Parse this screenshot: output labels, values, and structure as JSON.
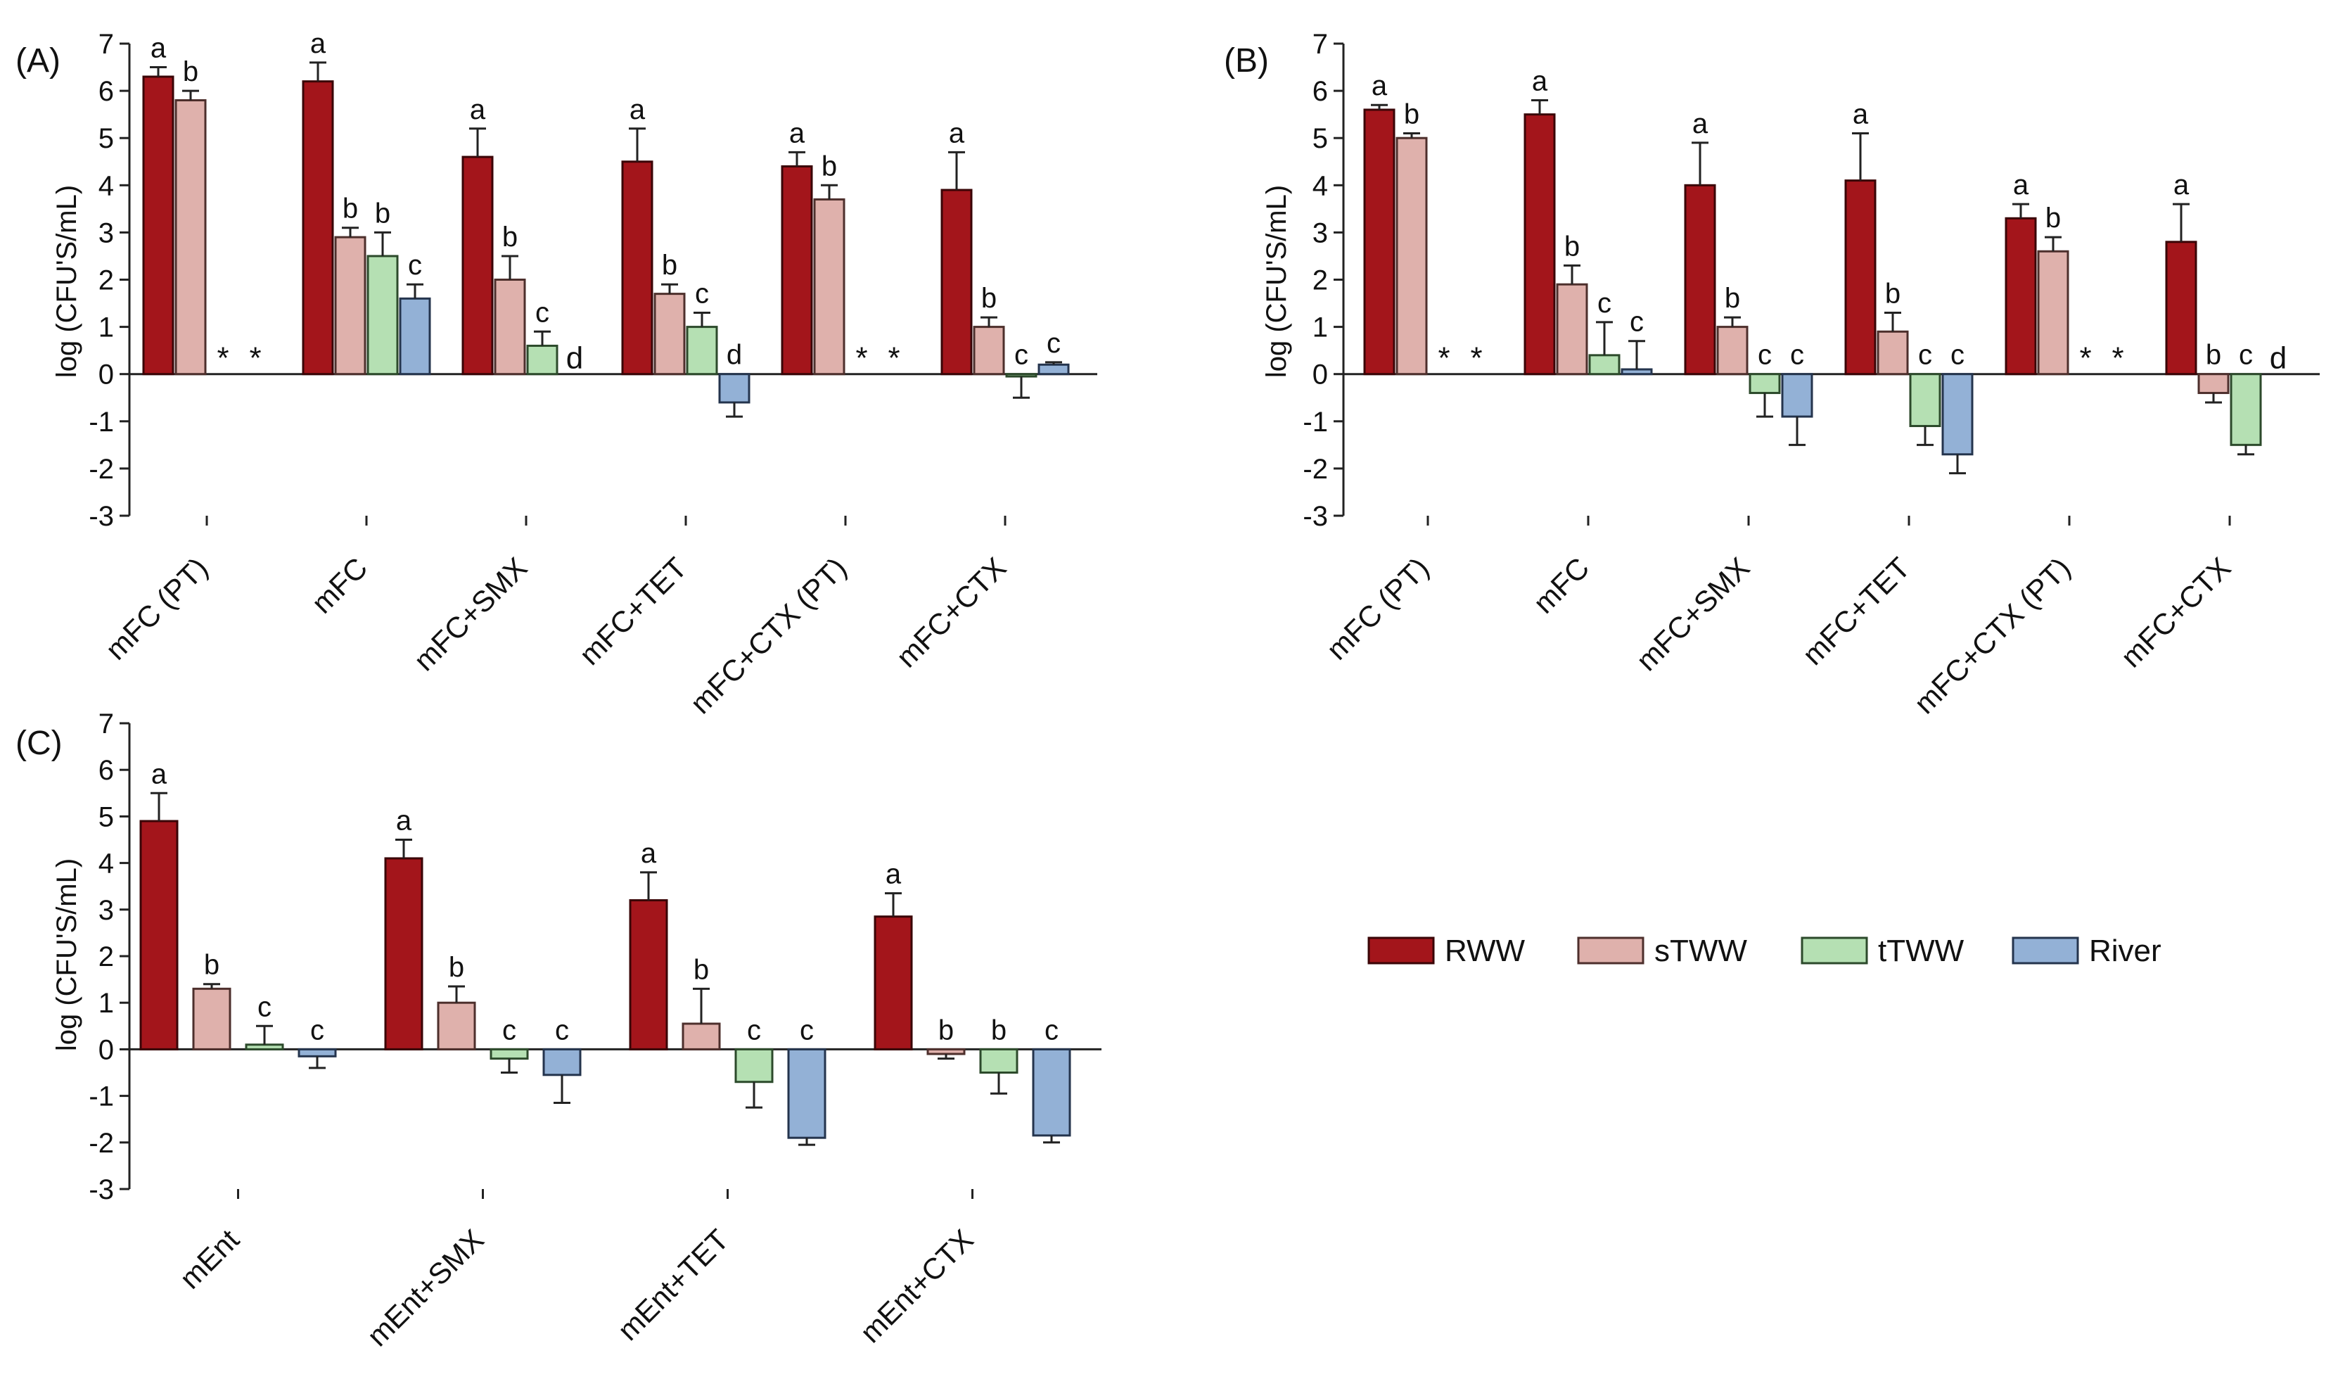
{
  "legend": {
    "items": [
      {
        "name": "RWW",
        "color": "#a3151b"
      },
      {
        "name": "sTWW",
        "color": "#dfb1ac"
      },
      {
        "name": "tTWW",
        "color": "#b5e0b3"
      },
      {
        "name": "River",
        "color": "#93b1d6"
      }
    ]
  },
  "series_style": {
    "RWW": {
      "fill": "#a3151b",
      "stroke": "#3a0507"
    },
    "sTWW": {
      "fill": "#dfb1ac",
      "stroke": "#4d2f2c"
    },
    "tTWW": {
      "fill": "#b5e0b3",
      "stroke": "#2c4a2b"
    },
    "River": {
      "fill": "#93b1d6",
      "stroke": "#24344d"
    }
  },
  "chart_data": [
    {
      "panel": "(A)",
      "type": "bar",
      "ylabel": "log (CFU'S/mL)",
      "ylim": [
        -3,
        7
      ],
      "yticks": [
        7,
        6,
        5,
        4,
        3,
        2,
        1,
        0,
        -1,
        -2,
        -3
      ],
      "series_names": [
        "RWW",
        "sTWW",
        "tTWW",
        "River"
      ],
      "groups": [
        {
          "label": "mFC (PT)",
          "bars": [
            {
              "series": "RWW",
              "value": 6.3,
              "err": 0.2,
              "letter": "a"
            },
            {
              "series": "sTWW",
              "value": 5.8,
              "err": 0.2,
              "letter": "b"
            },
            {
              "series": "tTWW",
              "value": null,
              "err": null,
              "letter": "*"
            },
            {
              "series": "River",
              "value": null,
              "err": null,
              "letter": "*"
            }
          ]
        },
        {
          "label": "mFC",
          "bars": [
            {
              "series": "RWW",
              "value": 6.2,
              "err": 0.4,
              "letter": "a"
            },
            {
              "series": "sTWW",
              "value": 2.9,
              "err": 0.2,
              "letter": "b"
            },
            {
              "series": "tTWW",
              "value": 2.5,
              "err": 0.5,
              "letter": "b"
            },
            {
              "series": "River",
              "value": 1.6,
              "err": 0.3,
              "letter": "c"
            }
          ]
        },
        {
          "label": "mFC+SMX",
          "bars": [
            {
              "series": "RWW",
              "value": 4.6,
              "err": 0.6,
              "letter": "a"
            },
            {
              "series": "sTWW",
              "value": 2.0,
              "err": 0.5,
              "letter": "b"
            },
            {
              "series": "tTWW",
              "value": 0.6,
              "err": 0.3,
              "letter": "c"
            },
            {
              "series": "River",
              "value": null,
              "err": null,
              "letter": "d"
            }
          ]
        },
        {
          "label": "mFC+TET",
          "bars": [
            {
              "series": "RWW",
              "value": 4.5,
              "err": 0.7,
              "letter": "a"
            },
            {
              "series": "sTWW",
              "value": 1.7,
              "err": 0.2,
              "letter": "b"
            },
            {
              "series": "tTWW",
              "value": 1.0,
              "err": 0.3,
              "letter": "c"
            },
            {
              "series": "River",
              "value": -0.6,
              "err": 0.3,
              "letter": "d"
            }
          ]
        },
        {
          "label": "mFC+CTX (PT)",
          "bars": [
            {
              "series": "RWW",
              "value": 4.4,
              "err": 0.3,
              "letter": "a"
            },
            {
              "series": "sTWW",
              "value": 3.7,
              "err": 0.3,
              "letter": "b"
            },
            {
              "series": "tTWW",
              "value": null,
              "err": null,
              "letter": "*"
            },
            {
              "series": "River",
              "value": null,
              "err": null,
              "letter": "*"
            }
          ]
        },
        {
          "label": "mFC+CTX",
          "bars": [
            {
              "series": "RWW",
              "value": 3.9,
              "err": 0.8,
              "letter": "a"
            },
            {
              "series": "sTWW",
              "value": 1.0,
              "err": 0.2,
              "letter": "b"
            },
            {
              "series": "tTWW",
              "value": -0.05,
              "err": 0.45,
              "letter": "c"
            },
            {
              "series": "River",
              "value": 0.2,
              "err": 0.05,
              "letter": "c"
            }
          ]
        }
      ]
    },
    {
      "panel": "(B)",
      "type": "bar",
      "ylabel": "log (CFU'S/mL)",
      "ylim": [
        -3,
        7
      ],
      "yticks": [
        7,
        6,
        5,
        4,
        3,
        2,
        1,
        0,
        -1,
        -2,
        -3
      ],
      "series_names": [
        "RWW",
        "sTWW",
        "tTWW",
        "River"
      ],
      "groups": [
        {
          "label": "mFC (PT)",
          "bars": [
            {
              "series": "RWW",
              "value": 5.6,
              "err": 0.1,
              "letter": "a"
            },
            {
              "series": "sTWW",
              "value": 5.0,
              "err": 0.1,
              "letter": "b"
            },
            {
              "series": "tTWW",
              "value": null,
              "err": null,
              "letter": "*"
            },
            {
              "series": "River",
              "value": null,
              "err": null,
              "letter": "*"
            }
          ]
        },
        {
          "label": "mFC",
          "bars": [
            {
              "series": "RWW",
              "value": 5.5,
              "err": 0.3,
              "letter": "a"
            },
            {
              "series": "sTWW",
              "value": 1.9,
              "err": 0.4,
              "letter": "b"
            },
            {
              "series": "tTWW",
              "value": 0.4,
              "err": 0.7,
              "letter": "c"
            },
            {
              "series": "River",
              "value": 0.1,
              "err": 0.6,
              "letter": "c"
            }
          ]
        },
        {
          "label": "mFC+SMX",
          "bars": [
            {
              "series": "RWW",
              "value": 4.0,
              "err": 0.9,
              "letter": "a"
            },
            {
              "series": "sTWW",
              "value": 1.0,
              "err": 0.2,
              "letter": "b"
            },
            {
              "series": "tTWW",
              "value": -0.4,
              "err": 0.5,
              "letter": "c"
            },
            {
              "series": "River",
              "value": -0.9,
              "err": 0.6,
              "letter": "c"
            }
          ]
        },
        {
          "label": "mFC+TET",
          "bars": [
            {
              "series": "RWW",
              "value": 4.1,
              "err": 1.0,
              "letter": "a"
            },
            {
              "series": "sTWW",
              "value": 0.9,
              "err": 0.4,
              "letter": "b"
            },
            {
              "series": "tTWW",
              "value": -1.1,
              "err": 0.4,
              "letter": "c"
            },
            {
              "series": "River",
              "value": -1.7,
              "err": 0.4,
              "letter": "c"
            }
          ]
        },
        {
          "label": "mFC+CTX (PT)",
          "bars": [
            {
              "series": "RWW",
              "value": 3.3,
              "err": 0.3,
              "letter": "a"
            },
            {
              "series": "sTWW",
              "value": 2.6,
              "err": 0.3,
              "letter": "b"
            },
            {
              "series": "tTWW",
              "value": null,
              "err": null,
              "letter": "*"
            },
            {
              "series": "River",
              "value": null,
              "err": null,
              "letter": "*"
            }
          ]
        },
        {
          "label": "mFC+CTX",
          "bars": [
            {
              "series": "RWW",
              "value": 2.8,
              "err": 0.8,
              "letter": "a"
            },
            {
              "series": "sTWW",
              "value": -0.4,
              "err": 0.2,
              "letter": "b"
            },
            {
              "series": "tTWW",
              "value": -1.5,
              "err": 0.2,
              "letter": "c"
            },
            {
              "series": "River",
              "value": null,
              "err": null,
              "letter": "d"
            }
          ]
        }
      ]
    },
    {
      "panel": "(C)",
      "type": "bar",
      "ylabel": "log (CFU'S/mL)",
      "ylim": [
        -3,
        7
      ],
      "yticks": [
        7,
        6,
        5,
        4,
        3,
        2,
        1,
        0,
        -1,
        -2,
        -3
      ],
      "series_names": [
        "RWW",
        "sTWW",
        "tTWW",
        "River"
      ],
      "groups": [
        {
          "label": "mEnt",
          "bars": [
            {
              "series": "RWW",
              "value": 4.9,
              "err": 0.6,
              "letter": "a"
            },
            {
              "series": "sTWW",
              "value": 1.3,
              "err": 0.1,
              "letter": "b"
            },
            {
              "series": "tTWW",
              "value": 0.1,
              "err": 0.4,
              "letter": "c"
            },
            {
              "series": "River",
              "value": -0.15,
              "err": 0.25,
              "letter": "c"
            }
          ]
        },
        {
          "label": "mEnt+SMX",
          "bars": [
            {
              "series": "RWW",
              "value": 4.1,
              "err": 0.4,
              "letter": "a"
            },
            {
              "series": "sTWW",
              "value": 1.0,
              "err": 0.35,
              "letter": "b"
            },
            {
              "series": "tTWW",
              "value": -0.2,
              "err": 0.3,
              "letter": "c"
            },
            {
              "series": "River",
              "value": -0.55,
              "err": 0.6,
              "letter": "c"
            }
          ]
        },
        {
          "label": "mEnt+TET",
          "bars": [
            {
              "series": "RWW",
              "value": 3.2,
              "err": 0.6,
              "letter": "a"
            },
            {
              "series": "sTWW",
              "value": 0.55,
              "err": 0.75,
              "letter": "b"
            },
            {
              "series": "tTWW",
              "value": -0.7,
              "err": 0.55,
              "letter": "c"
            },
            {
              "series": "River",
              "value": -1.9,
              "err": 0.15,
              "letter": "c"
            }
          ]
        },
        {
          "label": "mEnt+CTX",
          "bars": [
            {
              "series": "RWW",
              "value": 2.85,
              "err": 0.5,
              "letter": "a"
            },
            {
              "series": "sTWW",
              "value": -0.1,
              "err": 0.1,
              "letter": "b"
            },
            {
              "series": "tTWW",
              "value": -0.5,
              "err": 0.45,
              "letter": "b"
            },
            {
              "series": "River",
              "value": -1.85,
              "err": 0.15,
              "letter": "c"
            }
          ]
        }
      ]
    }
  ]
}
